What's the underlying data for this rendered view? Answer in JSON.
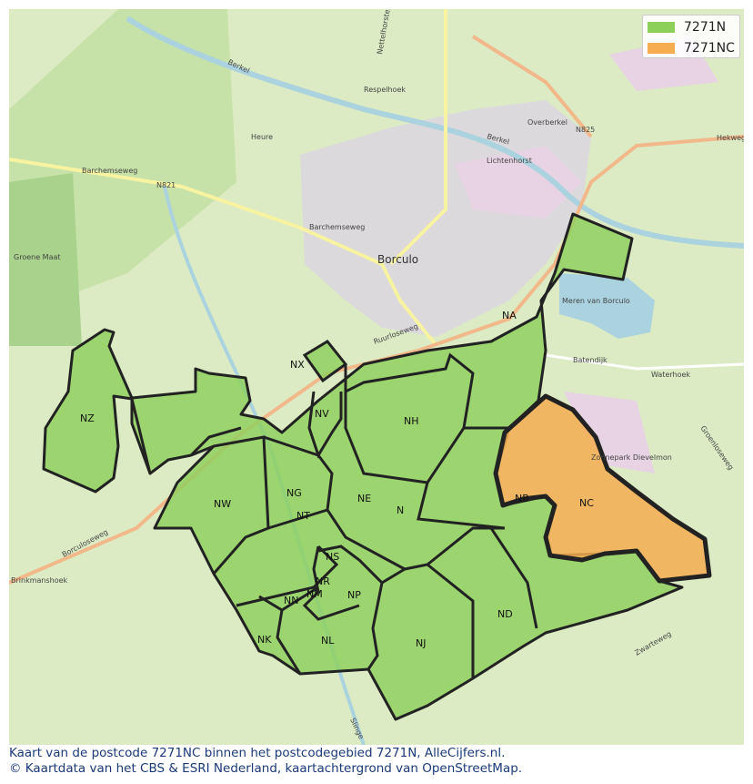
{
  "legend": [
    {
      "label": "7271N",
      "color": "#8cd05a"
    },
    {
      "label": "7271NC",
      "color": "#f5ad50"
    }
  ],
  "places": {
    "borculo": "Borculo",
    "respelhoek": "Respelhoek",
    "heure": "Heure",
    "overberkel": "Overberkel",
    "lichtenhorst": "Lichtenhorst",
    "n825": "N825",
    "n821": "N821",
    "barchemseweg1": "Barchemseweg",
    "barchemseweg2": "Barchemseweg",
    "hekweg": "Hekweg",
    "meren": "Meren van Borculo",
    "waterhoek": "Waterhoek",
    "batendijk": "Batendijk",
    "zonnepark": "Zonnepark Dievelmon",
    "brinkmanshoek": "Brinkmanshoek",
    "ruurloseweg": "Ruurloseweg",
    "borculoseweg": "Borculoseweg",
    "berkel1": "Berkel",
    "berkel2": "Berkel",
    "slinge": "Slinge",
    "groenemaat": "Groene Maat",
    "nettelhorsterweg": "Nettelhorsterweg",
    "zwarteweg": "Zwarteweg",
    "groenloseweg": "Groenloseweg"
  },
  "codes": {
    "NA": "NA",
    "NX": "NX",
    "NZ": "NZ",
    "NV": "NV",
    "NH": "NH",
    "NB": "NB",
    "NC": "NC",
    "NW": "NW",
    "NG": "NG",
    "NE": "NE",
    "N": "N",
    "NT": "NT",
    "NS": "NS",
    "NR": "NR",
    "NN": "NN",
    "NM": "NM",
    "NP": "NP",
    "NK": "NK",
    "NL": "NL",
    "NJ": "NJ",
    "ND": "ND"
  },
  "footer": {
    "line1": "Kaart van de postcode 7271NC binnen het postcodegebied 7271N, AlleCijfers.nl.",
    "line2": "© Kaartdata van het CBS & ESRI Nederland, kaartachtergrond van OpenStreetMap."
  }
}
